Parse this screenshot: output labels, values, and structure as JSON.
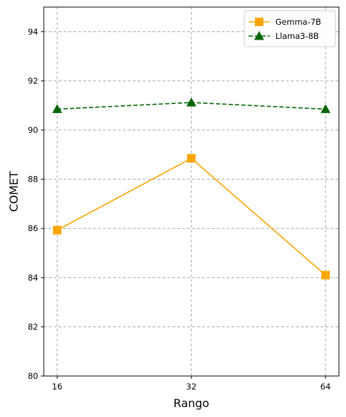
{
  "chart_data": {
    "type": "line",
    "title": "",
    "xlabel": "Rango",
    "ylabel": "COMET",
    "x": [
      16,
      32,
      64
    ],
    "x_tick_labels": [
      "16",
      "32",
      "64"
    ],
    "x_scale": "categorical",
    "ylim": [
      80,
      95
    ],
    "y_ticks": [
      80,
      82,
      84,
      86,
      88,
      90,
      92,
      94
    ],
    "grid": true,
    "legend_position": "top-right",
    "series": [
      {
        "name": "Gemma-7B",
        "values": [
          85.93,
          88.85,
          84.1
        ],
        "color": "#FFA500",
        "marker": "square",
        "line_style": "solid"
      },
      {
        "name": "Llama3-8B",
        "values": [
          90.85,
          91.12,
          90.85
        ],
        "color": "#006400",
        "marker": "triangle",
        "line_style": "dashed"
      }
    ]
  }
}
